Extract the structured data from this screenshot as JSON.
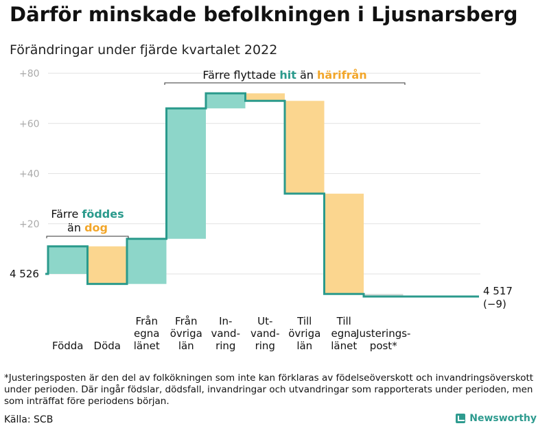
{
  "title": "Därför minskade befolkningen i Ljusnarsberg",
  "subtitle": "Förändringar under fjärde kvartalet 2022",
  "footnote": "*Justeringsposten är den del av folkökningen som inte kan förklaras av födelseöverskott och invandringsöverskott under perioden. Där ingår födslar, dödsfall, invandringar och utvandringar som rapporterats under perioden, men som inträffat före periodens början.",
  "source": "Källa: SCB",
  "brand": "Newsworthy",
  "colors": {
    "increase": "#8dd6c9",
    "decrease": "#fbd68f",
    "line": "#2a9a8c",
    "grid": "#e2e2e2",
    "adjust": "#cfd8d6",
    "tick": "#aaaaaa"
  },
  "chart_data": {
    "type": "waterfall",
    "title": "Därför minskade befolkningen i Ljusnarsberg",
    "subtitle": "Förändringar under fjärde kvartalet 2022",
    "baseline": 4526,
    "ylim": [
      -12,
      82
    ],
    "yticks": [
      {
        "value": 80,
        "label": "+80"
      },
      {
        "value": 60,
        "label": "+60"
      },
      {
        "value": 40,
        "label": "+40"
      },
      {
        "value": 20,
        "label": "+20"
      }
    ],
    "start_label": "4 526",
    "end_label": "4 517",
    "end_change_label": "(−9)",
    "steps": [
      {
        "name": "Födda",
        "label_lines": [
          "Födda"
        ],
        "start": 0,
        "end": 11,
        "kind": "increase"
      },
      {
        "name": "Döda",
        "label_lines": [
          "Döda"
        ],
        "start": 11,
        "end": -4,
        "kind": "decrease"
      },
      {
        "name": "Från egna länet",
        "label_lines": [
          "Från",
          "egna",
          "länet"
        ],
        "start": -4,
        "end": 14,
        "kind": "increase"
      },
      {
        "name": "Från övriga län",
        "label_lines": [
          "Från",
          "övriga",
          "län"
        ],
        "start": 14,
        "end": 66,
        "kind": "increase"
      },
      {
        "name": "Invandring",
        "label_lines": [
          "In-",
          "vand-",
          "ring"
        ],
        "start": 66,
        "end": 72,
        "kind": "increase"
      },
      {
        "name": "Utvandring",
        "label_lines": [
          "Ut-",
          "vand-",
          "ring"
        ],
        "start": 72,
        "end": 69,
        "kind": "decrease"
      },
      {
        "name": "Till övriga län",
        "label_lines": [
          "Till",
          "övriga",
          "län"
        ],
        "start": 69,
        "end": 32,
        "kind": "decrease"
      },
      {
        "name": "Till egna länet",
        "label_lines": [
          "Till",
          "egna",
          "länet"
        ],
        "start": 32,
        "end": -8,
        "kind": "decrease"
      },
      {
        "name": "Justeringspost*",
        "label_lines": [
          "Justerings-",
          "post*"
        ],
        "start": -8,
        "end": -9,
        "kind": "adjust"
      }
    ],
    "annotations": [
      {
        "segments": [
          {
            "text": "Färre "
          },
          {
            "text": "föddes",
            "kind": "increase"
          }
        ],
        "segments2": [
          {
            "text": "än "
          },
          {
            "text": "dog",
            "kind": "decrease"
          }
        ],
        "from_step": 0,
        "to_step": 1,
        "at_value": 15
      },
      {
        "segments": [
          {
            "text": "Färre flyttade "
          },
          {
            "text": "hit",
            "kind": "increase"
          },
          {
            "text": " än "
          },
          {
            "text": "härifrån",
            "kind": "decrease"
          }
        ],
        "from_step": 2,
        "to_step": 8,
        "at_value": 77
      }
    ]
  }
}
